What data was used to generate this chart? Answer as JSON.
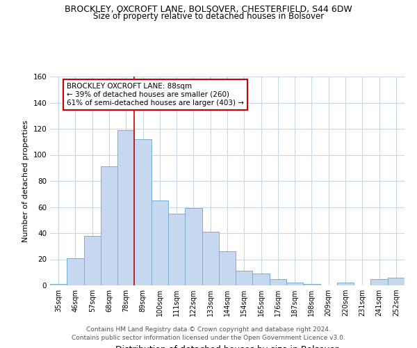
{
  "title": "BROCKLEY, OXCROFT LANE, BOLSOVER, CHESTERFIELD, S44 6DW",
  "subtitle": "Size of property relative to detached houses in Bolsover",
  "xlabel": "Distribution of detached houses by size in Bolsover",
  "ylabel": "Number of detached properties",
  "footnote1": "Contains HM Land Registry data © Crown copyright and database right 2024.",
  "footnote2": "Contains public sector information licensed under the Open Government Licence v3.0.",
  "annotation_line1": "BROCKLEY OXCROFT LANE: 88sqm",
  "annotation_line2": "← 39% of detached houses are smaller (260)",
  "annotation_line3": "61% of semi-detached houses are larger (403) →",
  "categories": [
    "35sqm",
    "46sqm",
    "57sqm",
    "68sqm",
    "78sqm",
    "89sqm",
    "100sqm",
    "111sqm",
    "122sqm",
    "133sqm",
    "144sqm",
    "154sqm",
    "165sqm",
    "176sqm",
    "187sqm",
    "198sqm",
    "209sqm",
    "220sqm",
    "231sqm",
    "241sqm",
    "252sqm"
  ],
  "values": [
    1,
    21,
    38,
    91,
    119,
    112,
    65,
    55,
    59,
    41,
    26,
    11,
    9,
    5,
    2,
    1,
    0,
    2,
    0,
    5,
    6
  ],
  "bar_color": "#c5d8f0",
  "bar_edge_color": "#7aadd4",
  "vline_color": "#cc0000",
  "vline_x_index": 4.5,
  "annotation_box_color": "#cc0000",
  "ylim": [
    0,
    160
  ],
  "yticks": [
    0,
    20,
    40,
    60,
    80,
    100,
    120,
    140,
    160
  ],
  "background_color": "#ffffff",
  "grid_color": "#c8d8ea",
  "title_fontsize": 9,
  "subtitle_fontsize": 8.5,
  "tick_fontsize": 7,
  "ylabel_fontsize": 8,
  "xlabel_fontsize": 9,
  "footnote_fontsize": 6.5
}
